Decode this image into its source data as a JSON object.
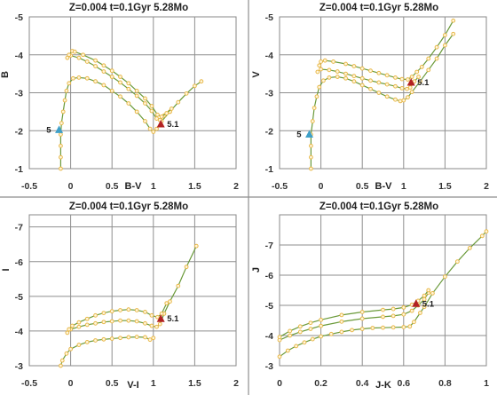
{
  "colors": {
    "track_line": "#6a9a3a",
    "track_marker": "#e8b84a",
    "marker_red": "#b22222",
    "marker_blue": "#3fa0c8",
    "frame": "#888888",
    "grid": "#8e8e8e"
  },
  "chart_data": [
    {
      "type": "scatter",
      "title": "Z=0.004  t=0.1Gyr 5.28Mo",
      "xlabel": "B-V",
      "ylabel": "B",
      "xlim": [
        -0.5,
        2
      ],
      "ylim": [
        -1,
        -5
      ],
      "x_ticks": [
        "-0.5",
        "0",
        "0.5",
        "1",
        "1.5",
        "2"
      ],
      "y_ticks": [
        "-1",
        "-2",
        "-3",
        "-4",
        "-5"
      ],
      "grid": true,
      "series": [
        {
          "points": [
            [
              -0.12,
              -1.0
            ],
            [
              -0.12,
              -1.3
            ],
            [
              -0.12,
              -1.6
            ],
            [
              -0.12,
              -1.9
            ],
            [
              -0.11,
              -2.2
            ],
            [
              -0.09,
              -2.5
            ],
            [
              -0.07,
              -2.8
            ],
            [
              -0.05,
              -3.05
            ],
            [
              -0.02,
              -3.25
            ],
            [
              0.03,
              -3.38
            ],
            [
              0.1,
              -3.4
            ],
            [
              0.2,
              -3.38
            ],
            [
              0.3,
              -3.3
            ],
            [
              0.4,
              -3.2
            ],
            [
              0.5,
              -3.05
            ],
            [
              0.6,
              -2.9
            ],
            [
              0.7,
              -2.72
            ],
            [
              0.8,
              -2.5
            ],
            [
              0.9,
              -2.25
            ],
            [
              0.96,
              -2.05
            ],
            [
              1.0,
              -1.97
            ],
            [
              1.04,
              -2.05
            ],
            [
              1.1,
              -2.25
            ],
            [
              1.2,
              -2.5
            ],
            [
              1.3,
              -2.75
            ],
            [
              1.4,
              -2.98
            ],
            [
              1.5,
              -3.18
            ],
            [
              1.58,
              -3.3
            ]
          ]
        },
        {
          "points": [
            [
              -0.04,
              -3.92
            ],
            [
              0.0,
              -3.98
            ],
            [
              0.1,
              -3.92
            ],
            [
              0.2,
              -3.82
            ],
            [
              0.3,
              -3.7
            ],
            [
              0.4,
              -3.56
            ],
            [
              0.5,
              -3.42
            ],
            [
              0.6,
              -3.27
            ],
            [
              0.7,
              -3.1
            ],
            [
              0.8,
              -2.92
            ],
            [
              0.9,
              -2.72
            ],
            [
              0.98,
              -2.52
            ],
            [
              1.04,
              -2.32
            ],
            [
              1.08,
              -2.28
            ],
            [
              1.13,
              -2.4
            ],
            [
              1.2,
              -2.5
            ]
          ]
        },
        {
          "points": [
            [
              -0.02,
              -4.0
            ],
            [
              0.02,
              -4.1
            ],
            [
              0.05,
              -4.08
            ],
            [
              0.15,
              -4.0
            ],
            [
              0.3,
              -3.85
            ],
            [
              0.4,
              -3.72
            ],
            [
              0.5,
              -3.58
            ],
            [
              0.6,
              -3.42
            ],
            [
              0.7,
              -3.25
            ],
            [
              0.8,
              -3.05
            ],
            [
              0.9,
              -2.85
            ],
            [
              0.98,
              -2.65
            ],
            [
              1.05,
              -2.42
            ],
            [
              1.1,
              -2.37
            ],
            [
              1.16,
              -2.46
            ],
            [
              1.22,
              -2.58
            ]
          ]
        }
      ],
      "markers": [
        {
          "label": "5.1",
          "x": 1.09,
          "y": -2.17,
          "shape": "red-triangle"
        },
        {
          "label": "5",
          "x": -0.14,
          "y": -2.02,
          "shape": "blue-triangle"
        }
      ]
    },
    {
      "type": "scatter",
      "title": "Z=0.004  t=0.1Gyr 5.28Mo",
      "xlabel": "B-V",
      "ylabel": "V",
      "xlim": [
        -0.5,
        2
      ],
      "ylim": [
        -1,
        -5
      ],
      "x_ticks": [
        "-0.5",
        "0",
        "0.5",
        "1",
        "1.5",
        "2"
      ],
      "y_ticks": [
        "-1",
        "-2",
        "-3",
        "-4",
        "-5"
      ],
      "grid": true,
      "series": [
        {
          "points": [
            [
              -0.12,
              -1.0
            ],
            [
              -0.12,
              -1.3
            ],
            [
              -0.12,
              -1.6
            ],
            [
              -0.12,
              -1.9
            ],
            [
              -0.1,
              -2.25
            ],
            [
              -0.08,
              -2.6
            ],
            [
              -0.05,
              -2.9
            ],
            [
              -0.02,
              -3.15
            ],
            [
              0.03,
              -3.32
            ],
            [
              0.1,
              -3.4
            ],
            [
              0.2,
              -3.42
            ],
            [
              0.3,
              -3.38
            ],
            [
              0.4,
              -3.3
            ],
            [
              0.5,
              -3.2
            ],
            [
              0.6,
              -3.1
            ],
            [
              0.7,
              -3.0
            ],
            [
              0.8,
              -2.9
            ],
            [
              0.9,
              -2.82
            ],
            [
              0.96,
              -2.78
            ],
            [
              1.0,
              -2.8
            ],
            [
              1.05,
              -2.88
            ],
            [
              1.1,
              -3.02
            ],
            [
              1.2,
              -3.3
            ],
            [
              1.3,
              -3.6
            ],
            [
              1.4,
              -3.9
            ],
            [
              1.5,
              -4.25
            ],
            [
              1.6,
              -4.55
            ]
          ]
        },
        {
          "points": [
            [
              -0.04,
              -3.55
            ],
            [
              0.0,
              -3.62
            ],
            [
              0.1,
              -3.6
            ],
            [
              0.2,
              -3.56
            ],
            [
              0.3,
              -3.5
            ],
            [
              0.4,
              -3.44
            ],
            [
              0.5,
              -3.38
            ],
            [
              0.6,
              -3.32
            ],
            [
              0.7,
              -3.27
            ],
            [
              0.8,
              -3.22
            ],
            [
              0.9,
              -3.17
            ],
            [
              0.98,
              -3.12
            ],
            [
              1.04,
              -3.1
            ],
            [
              1.08,
              -3.14
            ],
            [
              1.13,
              -3.3
            ],
            [
              1.18,
              -3.42
            ]
          ]
        },
        {
          "points": [
            [
              -0.02,
              -3.72
            ],
            [
              0.0,
              -3.82
            ],
            [
              0.05,
              -3.85
            ],
            [
              0.15,
              -3.82
            ],
            [
              0.3,
              -3.76
            ],
            [
              0.4,
              -3.7
            ],
            [
              0.5,
              -3.64
            ],
            [
              0.6,
              -3.58
            ],
            [
              0.7,
              -3.52
            ],
            [
              0.8,
              -3.46
            ],
            [
              0.9,
              -3.4
            ],
            [
              0.98,
              -3.36
            ],
            [
              1.05,
              -3.35
            ],
            [
              1.1,
              -3.42
            ],
            [
              1.16,
              -3.55
            ],
            [
              1.22,
              -3.68
            ],
            [
              1.3,
              -3.9
            ],
            [
              1.4,
              -4.2
            ],
            [
              1.5,
              -4.52
            ],
            [
              1.6,
              -4.9
            ]
          ]
        }
      ],
      "markers": [
        {
          "label": "5.1",
          "x": 1.09,
          "y": -3.27,
          "shape": "red-triangle"
        },
        {
          "label": "5",
          "x": -0.14,
          "y": -1.9,
          "shape": "blue-triangle"
        }
      ]
    },
    {
      "type": "scatter",
      "title": "Z=0.004  t=0.1Gyr 5.28Mo",
      "xlabel": "V-I",
      "ylabel": "I",
      "xlim": [
        -0.5,
        2
      ],
      "ylim": [
        -3,
        -7
      ],
      "x_ticks": [
        "-0.5",
        "0",
        "0.5",
        "1",
        "1.5",
        "2"
      ],
      "y_ticks": [
        "-3",
        "-4",
        "-5",
        "-6",
        "-7"
      ],
      "grid": true,
      "series": [
        {
          "points": [
            [
              -0.12,
              -3.0
            ],
            [
              -0.1,
              -3.15
            ],
            [
              -0.05,
              -3.35
            ],
            [
              0.0,
              -3.48
            ],
            [
              0.1,
              -3.6
            ],
            [
              0.2,
              -3.68
            ],
            [
              0.3,
              -3.73
            ],
            [
              0.4,
              -3.76
            ],
            [
              0.5,
              -3.78
            ],
            [
              0.6,
              -3.8
            ],
            [
              0.7,
              -3.82
            ],
            [
              0.8,
              -3.83
            ],
            [
              0.9,
              -3.82
            ],
            [
              0.96,
              -3.75
            ],
            [
              1.0,
              -3.8
            ]
          ]
        },
        {
          "points": [
            [
              -0.04,
              -3.95
            ],
            [
              0.0,
              -4.05
            ],
            [
              0.1,
              -4.12
            ],
            [
              0.2,
              -4.18
            ],
            [
              0.3,
              -4.22
            ],
            [
              0.4,
              -4.26
            ],
            [
              0.5,
              -4.28
            ],
            [
              0.6,
              -4.3
            ],
            [
              0.7,
              -4.3
            ],
            [
              0.8,
              -4.28
            ],
            [
              0.9,
              -4.22
            ],
            [
              0.98,
              -4.15
            ],
            [
              1.04,
              -4.12
            ],
            [
              1.08,
              -4.2
            ],
            [
              1.13,
              -4.5
            ],
            [
              1.2,
              -4.85
            ],
            [
              1.3,
              -5.3
            ],
            [
              1.4,
              -5.85
            ],
            [
              1.52,
              -6.45
            ]
          ]
        },
        {
          "points": [
            [
              -0.02,
              -4.05
            ],
            [
              0.02,
              -4.15
            ],
            [
              0.1,
              -4.25
            ],
            [
              0.2,
              -4.35
            ],
            [
              0.3,
              -4.45
            ],
            [
              0.4,
              -4.52
            ],
            [
              0.5,
              -4.57
            ],
            [
              0.6,
              -4.6
            ],
            [
              0.7,
              -4.62
            ],
            [
              0.8,
              -4.6
            ],
            [
              0.9,
              -4.55
            ],
            [
              0.98,
              -4.45
            ],
            [
              1.05,
              -4.4
            ],
            [
              1.1,
              -4.5
            ],
            [
              1.16,
              -4.8
            ]
          ]
        }
      ],
      "markers": [
        {
          "label": "5.1",
          "x": 1.09,
          "y": -4.35,
          "shape": "red-triangle"
        }
      ]
    },
    {
      "type": "scatter",
      "title": "Z=0.004  t=0.1Gyr 5.28Mo",
      "xlabel": "J-K",
      "ylabel": "J",
      "xlim": [
        0,
        1
      ],
      "ylim": [
        -3,
        -8
      ],
      "x_ticks": [
        "0",
        "0.2",
        "0.4",
        "0.6",
        "0.8",
        "1"
      ],
      "y_ticks": [
        "-3",
        "-4",
        "-5",
        "-6",
        "-7"
      ],
      "grid": true,
      "series": [
        {
          "points": [
            [
              0.0,
              -3.3
            ],
            [
              0.04,
              -3.5
            ],
            [
              0.08,
              -3.65
            ],
            [
              0.12,
              -3.77
            ],
            [
              0.16,
              -3.88
            ],
            [
              0.2,
              -3.97
            ],
            [
              0.25,
              -4.05
            ],
            [
              0.3,
              -4.12
            ],
            [
              0.35,
              -4.18
            ],
            [
              0.4,
              -4.22
            ],
            [
              0.45,
              -4.25
            ],
            [
              0.5,
              -4.26
            ],
            [
              0.55,
              -4.27
            ],
            [
              0.6,
              -4.28
            ],
            [
              0.63,
              -4.3
            ],
            [
              0.65,
              -4.45
            ],
            [
              0.68,
              -4.75
            ],
            [
              0.7,
              -4.95
            ],
            [
              0.74,
              -5.4
            ],
            [
              0.8,
              -5.95
            ],
            [
              0.86,
              -6.45
            ],
            [
              0.92,
              -6.9
            ],
            [
              0.98,
              -7.3
            ],
            [
              1.0,
              -7.45
            ]
          ]
        },
        {
          "points": [
            [
              0.0,
              -3.85
            ],
            [
              0.05,
              -4.0
            ],
            [
              0.1,
              -4.12
            ],
            [
              0.15,
              -4.22
            ],
            [
              0.2,
              -4.32
            ],
            [
              0.3,
              -4.46
            ],
            [
              0.4,
              -4.56
            ],
            [
              0.5,
              -4.62
            ],
            [
              0.55,
              -4.65
            ],
            [
              0.6,
              -4.7
            ],
            [
              0.64,
              -4.82
            ],
            [
              0.67,
              -5.0
            ],
            [
              0.7,
              -5.2
            ],
            [
              0.72,
              -5.42
            ]
          ]
        },
        {
          "points": [
            [
              0.0,
              -3.95
            ],
            [
              0.05,
              -4.15
            ],
            [
              0.1,
              -4.3
            ],
            [
              0.15,
              -4.42
            ],
            [
              0.2,
              -4.52
            ],
            [
              0.3,
              -4.68
            ],
            [
              0.4,
              -4.78
            ],
            [
              0.5,
              -4.85
            ],
            [
              0.55,
              -4.88
            ],
            [
              0.6,
              -4.93
            ],
            [
              0.64,
              -5.02
            ],
            [
              0.67,
              -5.15
            ],
            [
              0.7,
              -5.32
            ],
            [
              0.72,
              -5.5
            ]
          ]
        }
      ],
      "markers": [
        {
          "label": "5.1",
          "x": 0.66,
          "y": -5.05,
          "shape": "red-triangle"
        }
      ]
    }
  ]
}
